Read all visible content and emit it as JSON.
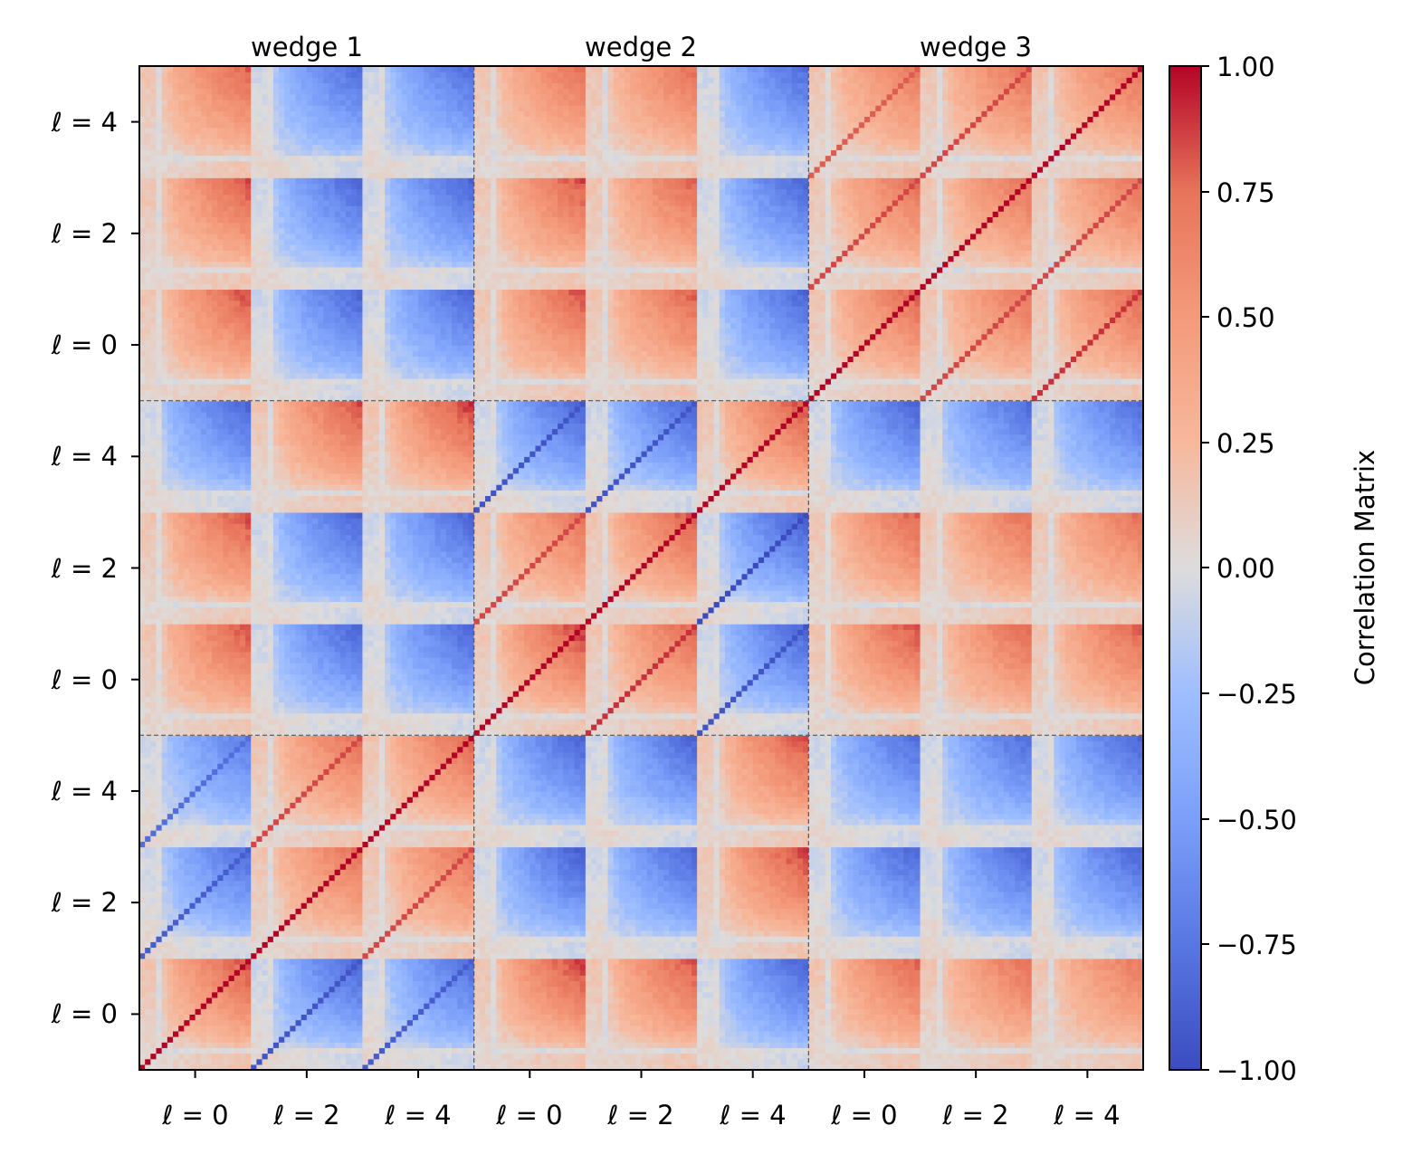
{
  "chart_data": {
    "type": "heatmap",
    "colormap": "coolwarm",
    "n_wedges": 3,
    "n_multipoles": 3,
    "bins_per_block": 20,
    "column_titles": [
      "wedge 1",
      "wedge 2",
      "wedge 3"
    ],
    "x_tick_labels": [
      "ℓ = 0",
      "ℓ = 2",
      "ℓ = 4",
      "ℓ = 0",
      "ℓ = 2",
      "ℓ = 4",
      "ℓ = 0",
      "ℓ = 2",
      "ℓ = 4"
    ],
    "y_tick_labels": [
      "ℓ = 0",
      "ℓ = 2",
      "ℓ = 4",
      "ℓ = 0",
      "ℓ = 2",
      "ℓ = 4",
      "ℓ = 0",
      "ℓ = 2",
      "ℓ = 4"
    ],
    "colorbar": {
      "label": "Correlation Matrix",
      "vmin": -1.0,
      "vmax": 1.0,
      "ticks": [
        -1.0,
        -0.75,
        -0.5,
        -0.25,
        0.0,
        0.25,
        0.5,
        0.75,
        1.0
      ],
      "tick_labels": [
        "−1.00",
        "−0.75",
        "−0.50",
        "−0.25",
        "0.00",
        "0.25",
        "0.50",
        "0.75",
        "1.00"
      ]
    },
    "block_sign_rows_bottom_to_top": [
      [
        1,
        -1,
        -1,
        1,
        1,
        -1,
        1,
        1,
        1
      ],
      [
        -1,
        1,
        1,
        -1,
        -1,
        1,
        -1,
        -1,
        -1
      ],
      [
        -1,
        1,
        1,
        -1,
        -1,
        1,
        -1,
        -1,
        -1
      ],
      [
        1,
        -1,
        -1,
        1,
        1,
        -1,
        1,
        1,
        1
      ],
      [
        1,
        -1,
        -1,
        1,
        1,
        -1,
        1,
        1,
        1
      ],
      [
        -1,
        1,
        1,
        -1,
        -1,
        1,
        -1,
        -1,
        -1
      ],
      [
        1,
        -1,
        -1,
        1,
        1,
        -1,
        1,
        1,
        1
      ],
      [
        1,
        -1,
        -1,
        1,
        1,
        -1,
        1,
        1,
        1
      ],
      [
        1,
        -1,
        -1,
        1,
        1,
        -1,
        1,
        1,
        1
      ]
    ],
    "block_peak_magnitude_rows_bottom_to_top": [
      [
        0.85,
        0.85,
        0.8,
        0.9,
        0.85,
        0.85,
        0.8,
        0.75,
        0.7
      ],
      [
        0.8,
        0.75,
        0.75,
        0.9,
        0.85,
        0.9,
        0.85,
        0.85,
        0.85
      ],
      [
        0.7,
        0.75,
        0.8,
        0.85,
        0.85,
        0.85,
        0.8,
        0.8,
        0.85
      ],
      [
        0.85,
        0.85,
        0.85,
        0.9,
        0.8,
        0.85,
        0.85,
        0.8,
        0.8
      ],
      [
        0.85,
        0.85,
        0.85,
        0.75,
        0.85,
        0.9,
        0.8,
        0.75,
        0.75
      ],
      [
        0.85,
        0.85,
        0.9,
        0.85,
        0.85,
        0.85,
        0.85,
        0.8,
        0.8
      ],
      [
        0.85,
        0.85,
        0.85,
        0.85,
        0.8,
        0.85,
        0.8,
        0.75,
        0.8
      ],
      [
        0.85,
        0.85,
        0.85,
        0.85,
        0.8,
        0.85,
        0.75,
        0.75,
        0.75
      ],
      [
        0.8,
        0.8,
        0.8,
        0.75,
        0.75,
        0.8,
        0.7,
        0.75,
        0.75
      ]
    ],
    "diagonal_value": 1.0,
    "description_of_structure": "9x9 block correlation matrix; each block is a 20x20 bin submatrix with correlation strength growing toward high-k bins; thin diagonal lines of strong correlation appear in blocks sharing the same wedge"
  }
}
